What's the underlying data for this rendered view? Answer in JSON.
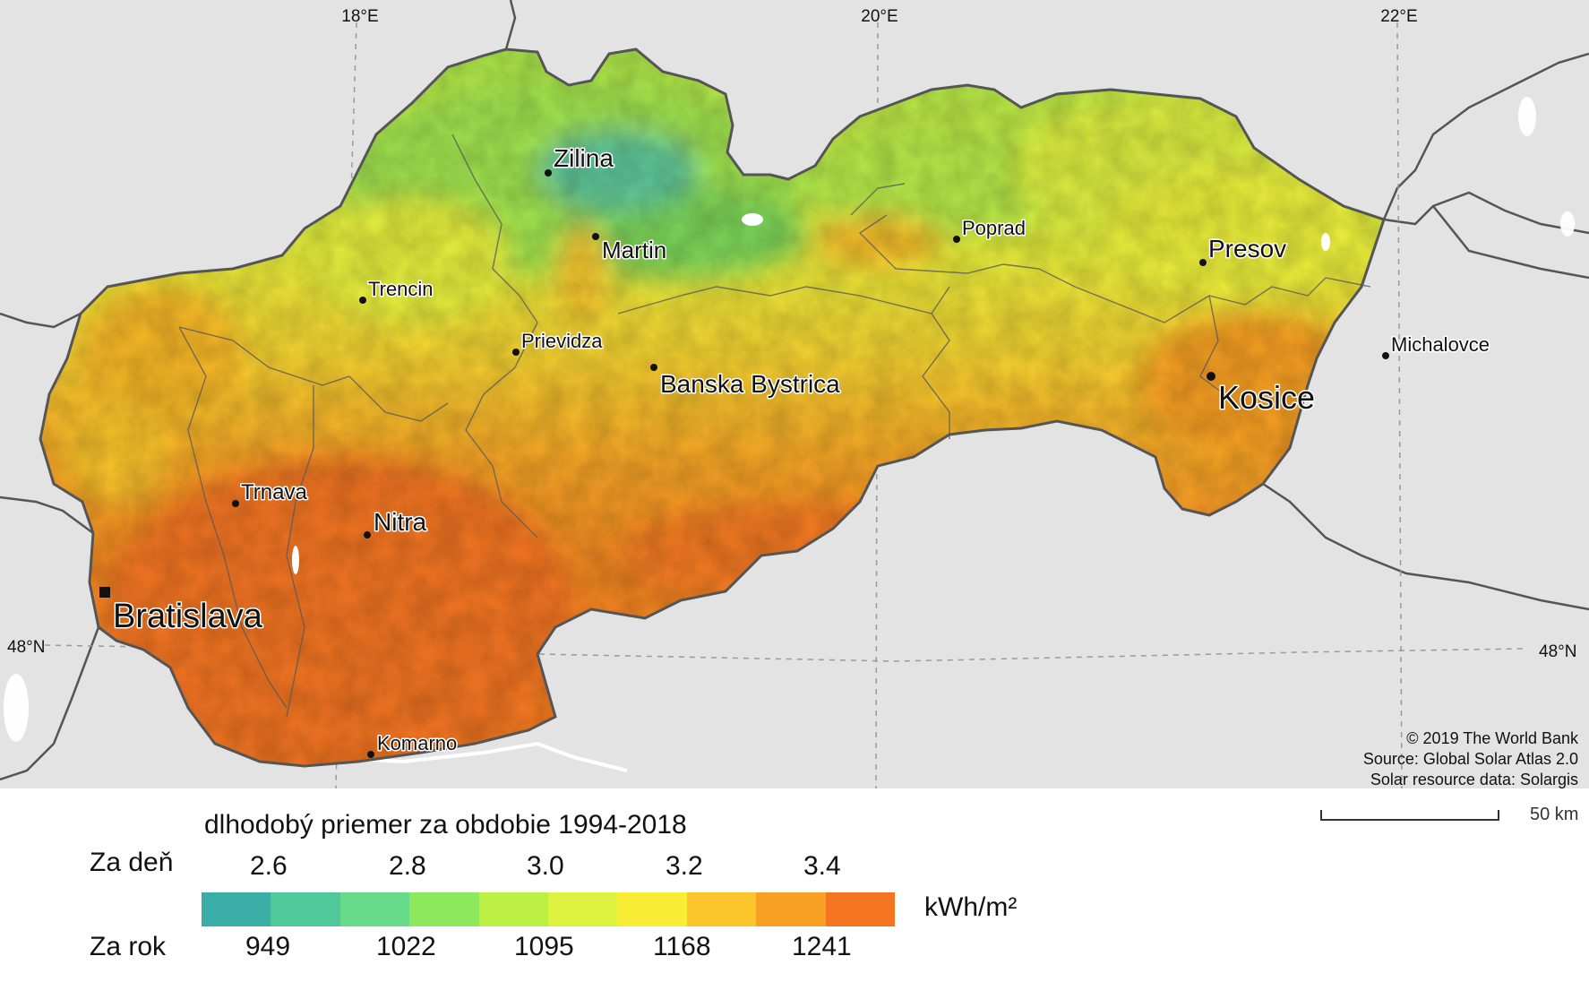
{
  "graticule": {
    "lon_labels": [
      "18°E",
      "20°E",
      "22°E"
    ],
    "lat_labels": [
      "48°N",
      "48°N"
    ]
  },
  "cities": [
    {
      "name": "Zilina",
      "size": "large",
      "marker": "dot"
    },
    {
      "name": "Martin",
      "size": "large",
      "marker": "dot"
    },
    {
      "name": "Poprad",
      "size": "small",
      "marker": "dot"
    },
    {
      "name": "Presov",
      "size": "large",
      "marker": "dot"
    },
    {
      "name": "Trencin",
      "size": "small",
      "marker": "dot"
    },
    {
      "name": "Prievidza",
      "size": "small",
      "marker": "dot"
    },
    {
      "name": "Banska Bystrica",
      "size": "large",
      "marker": "dot"
    },
    {
      "name": "Michalovce",
      "size": "small",
      "marker": "dot"
    },
    {
      "name": "Kosice",
      "size": "xlarge",
      "marker": "dot"
    },
    {
      "name": "Trnava",
      "size": "small",
      "marker": "dot"
    },
    {
      "name": "Nitra",
      "size": "large",
      "marker": "dot"
    },
    {
      "name": "Bratislava",
      "size": "capital",
      "marker": "square"
    },
    {
      "name": "Komarno",
      "size": "small",
      "marker": "dot"
    }
  ],
  "credits": [
    "© 2019 The World Bank",
    "Source: Global Solar Atlas 2.0",
    "Solar resource data: Solargis"
  ],
  "scale_bar": {
    "label": "50 km"
  },
  "legend": {
    "title": "dlhodobý priemer za obdobie 1994-2018",
    "row_day_label": "Za deň",
    "row_year_label": "Za rok",
    "unit": "kWh/m²",
    "day_values": [
      "2.6",
      "2.8",
      "3.0",
      "3.2",
      "3.4"
    ],
    "year_values": [
      "949",
      "1022",
      "1095",
      "1168",
      "1241"
    ],
    "colors": [
      "#3aada6",
      "#4fc99c",
      "#67db8a",
      "#8ee85c",
      "#bdf045",
      "#ddf23f",
      "#f8ec35",
      "#fbc52b",
      "#f8a024",
      "#f57420"
    ]
  },
  "colors": {
    "background": "#e3e3e3",
    "border": "#555555",
    "water": "#ffffff"
  }
}
